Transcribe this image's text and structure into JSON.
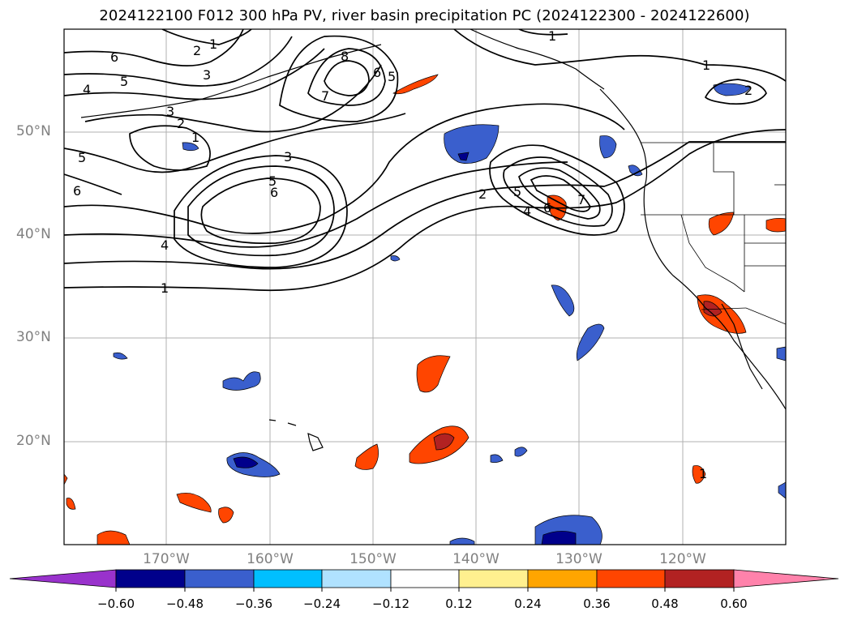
{
  "title": "2024122100 F012 300 hPa PV, river basin precipitation PC (2024122300 - 2024122600)",
  "map": {
    "lat_labels": [
      "50°N",
      "40°N",
      "30°N",
      "20°N"
    ],
    "lon_labels": [
      "170°W",
      "160°W",
      "150°W",
      "140°W",
      "130°W",
      "120°W"
    ],
    "contour_labels": [
      "6",
      "5",
      "4",
      "3",
      "2",
      "1",
      "2",
      "1",
      "3",
      "8",
      "6",
      "5",
      "7",
      "1",
      "2",
      "5",
      "6",
      "1",
      "3",
      "5",
      "6",
      "4",
      "1",
      "2",
      "5",
      "4",
      "6",
      "7",
      "1"
    ]
  },
  "colorbar": {
    "ticks": [
      "−0.60",
      "−0.48",
      "−0.36",
      "−0.24",
      "−0.12",
      "0.12",
      "0.24",
      "0.36",
      "0.48",
      "0.60"
    ],
    "colors": [
      "#9932cc",
      "#00008b",
      "#3a5fcd",
      "#00bfff",
      "#b0e2ff",
      "#ffffff",
      "#fff08f",
      "#ffa500",
      "#ff4500",
      "#b22222",
      "#ff82ab"
    ]
  }
}
